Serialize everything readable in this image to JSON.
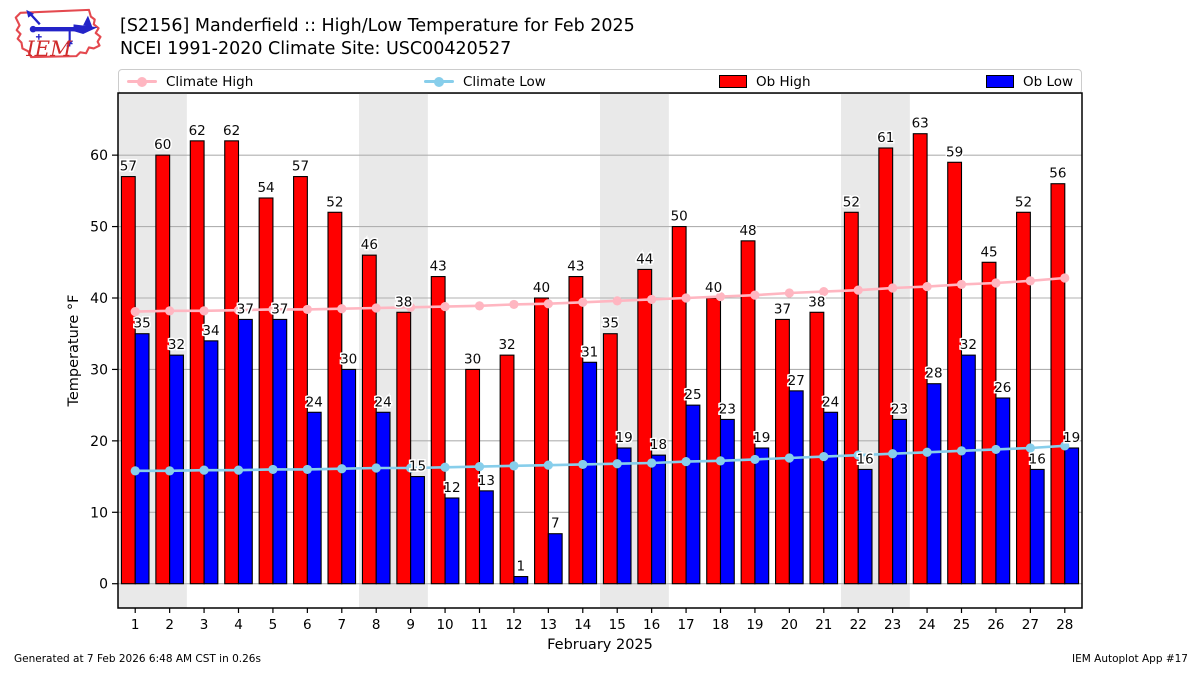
{
  "header": {
    "title_line1": "[S2156] Manderfield :: High/Low Temperature for Feb 2025",
    "title_line2": "NCEI 1991-2020 Climate Site: USC00420527",
    "logo_text": "IEM"
  },
  "legend": {
    "items": [
      {
        "label": "Climate High",
        "type": "line",
        "color": "#ffb6c1"
      },
      {
        "label": "Climate Low",
        "type": "line",
        "color": "#87ceeb"
      },
      {
        "label": "Ob High",
        "type": "swatch",
        "color": "#ff0000"
      },
      {
        "label": "Ob Low",
        "type": "swatch",
        "color": "#0000ff"
      }
    ]
  },
  "chart_data": {
    "type": "bar",
    "title": "[S2156] Manderfield :: High/Low Temperature for Feb 2025",
    "subtitle": "NCEI 1991-2020 Climate Site: USC00420527",
    "xlabel": "February 2025",
    "ylabel": "Temperature °F",
    "x": [
      1,
      2,
      3,
      4,
      5,
      6,
      7,
      8,
      9,
      10,
      11,
      12,
      13,
      14,
      15,
      16,
      17,
      18,
      19,
      20,
      21,
      22,
      23,
      24,
      25,
      26,
      27,
      28
    ],
    "series": [
      {
        "name": "Ob High",
        "type": "bar",
        "color": "#ff0000",
        "values": [
          57,
          60,
          62,
          62,
          54,
          57,
          52,
          46,
          38,
          43,
          30,
          32,
          40,
          43,
          35,
          44,
          50,
          40,
          48,
          37,
          38,
          52,
          61,
          63,
          59,
          45,
          52,
          56
        ]
      },
      {
        "name": "Ob Low",
        "type": "bar",
        "color": "#0000ff",
        "values": [
          35,
          32,
          34,
          37,
          37,
          24,
          30,
          24,
          15,
          12,
          13,
          1,
          7,
          31,
          19,
          18,
          25,
          23,
          19,
          27,
          24,
          16,
          23,
          28,
          32,
          26,
          16,
          19
        ]
      },
      {
        "name": "Climate High",
        "type": "line",
        "color": "#ffb6c1",
        "values": [
          38.1,
          38.2,
          38.2,
          38.3,
          38.4,
          38.4,
          38.5,
          38.6,
          38.7,
          38.8,
          38.9,
          39.1,
          39.2,
          39.4,
          39.6,
          39.8,
          40.0,
          40.2,
          40.4,
          40.7,
          40.9,
          41.1,
          41.4,
          41.6,
          41.9,
          42.1,
          42.4,
          42.8
        ]
      },
      {
        "name": "Climate Low",
        "type": "line",
        "color": "#87ceeb",
        "values": [
          15.8,
          15.8,
          15.9,
          15.9,
          16.0,
          16.0,
          16.1,
          16.2,
          16.2,
          16.3,
          16.4,
          16.5,
          16.6,
          16.7,
          16.8,
          16.9,
          17.1,
          17.2,
          17.4,
          17.6,
          17.8,
          18.0,
          18.2,
          18.4,
          18.6,
          18.8,
          19.0,
          19.3
        ]
      }
    ],
    "xlim": [
      0.5,
      28.5
    ],
    "ylim": [
      -3.4,
      68.7
    ],
    "yticks": [
      0,
      10,
      20,
      30,
      40,
      50,
      60
    ],
    "weekend_bands": [
      [
        0.5,
        2.5
      ],
      [
        7.5,
        9.5
      ],
      [
        14.5,
        16.5
      ],
      [
        21.5,
        23.5
      ]
    ],
    "grid": "horizontal",
    "legend_position": "top",
    "band_color": "#e9e9e9",
    "grid_color": "#b0b0b0"
  },
  "footer": {
    "left": "Generated at 7 Feb 2026 6:48 AM CST in 0.26s",
    "right": "IEM Autoplot App #17"
  }
}
